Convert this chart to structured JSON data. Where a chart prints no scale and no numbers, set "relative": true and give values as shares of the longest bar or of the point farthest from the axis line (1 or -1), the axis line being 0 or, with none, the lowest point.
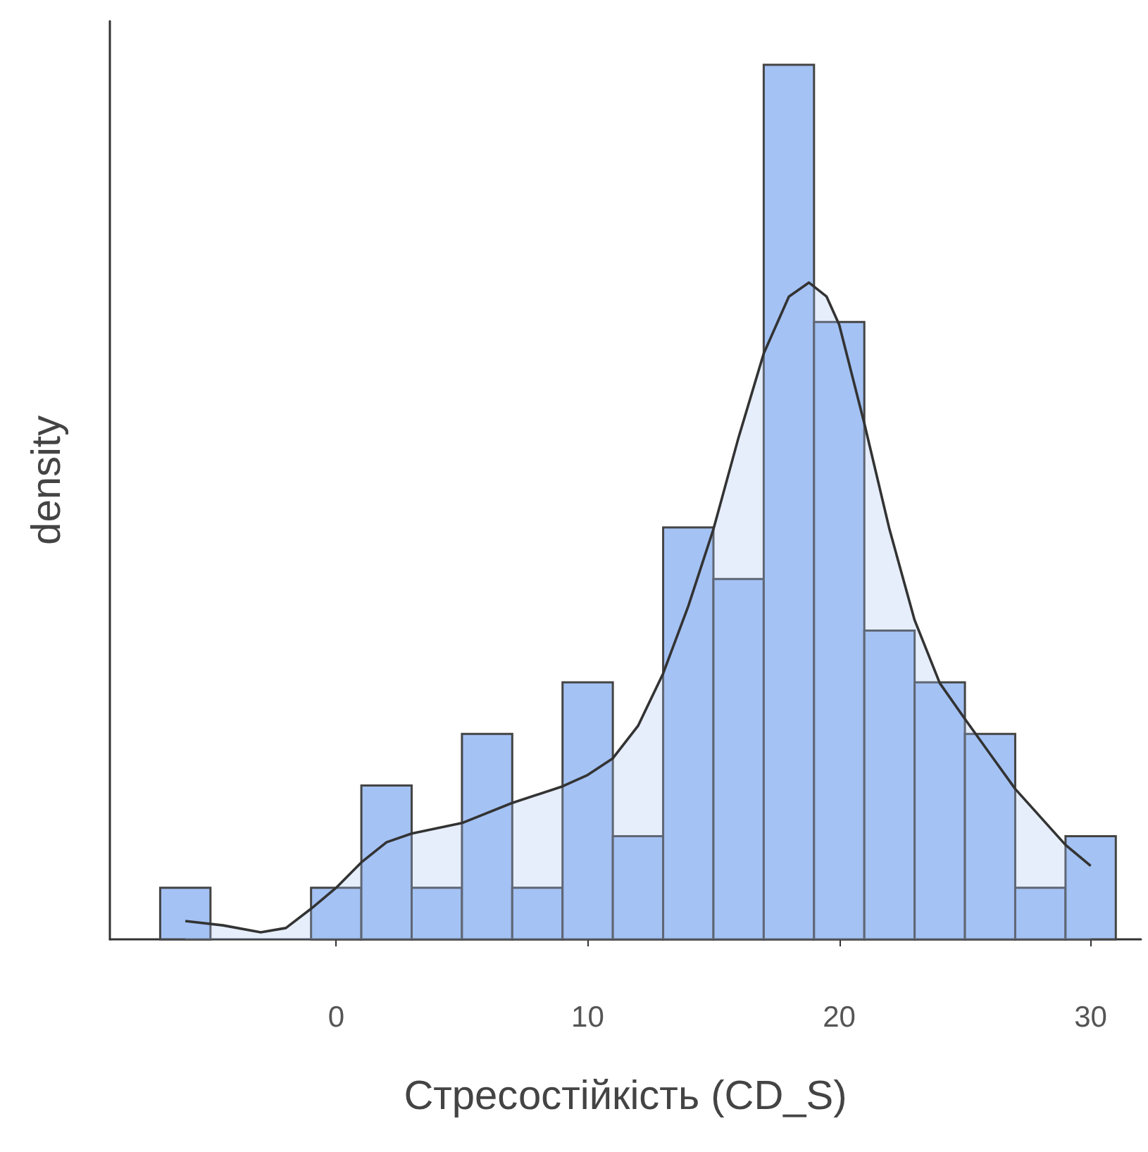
{
  "chart_data": {
    "type": "histogram",
    "relative": true,
    "xlabel": "Стресостійкість (CD_S)",
    "ylabel": "density",
    "xlim": [
      -9,
      32
    ],
    "xticks": [
      0,
      10,
      20,
      30
    ],
    "series": [
      {
        "type": "histogram",
        "color": "#a4c2f4",
        "bins": [
          -7,
          -5,
          -3,
          -1,
          1,
          3,
          5,
          7,
          9,
          11,
          13,
          15,
          17,
          19,
          21,
          23,
          25,
          27,
          29,
          31
        ],
        "values": [
          0.059,
          0,
          0,
          0.059,
          0.176,
          0.059,
          0.235,
          0.059,
          0.294,
          0.118,
          0.471,
          0.412,
          1,
          0.706,
          0.353,
          0.294,
          0.235,
          0.059,
          0.118
        ]
      },
      {
        "type": "area",
        "color": "#333333",
        "x": [
          -6,
          -4.5,
          -3,
          -2,
          -1,
          0,
          1,
          2,
          3,
          5,
          7,
          9,
          10,
          11,
          12,
          13,
          14,
          15,
          16,
          17,
          18,
          18.8,
          19.5,
          20,
          21,
          22,
          23,
          24,
          25,
          26,
          27,
          28,
          29,
          30
        ],
        "values": [
          0.021,
          0.016,
          0.008,
          0.013,
          0.035,
          0.059,
          0.088,
          0.111,
          0.121,
          0.133,
          0.156,
          0.175,
          0.188,
          0.207,
          0.244,
          0.304,
          0.381,
          0.469,
          0.574,
          0.67,
          0.735,
          0.751,
          0.735,
          0.703,
          0.59,
          0.469,
          0.365,
          0.293,
          0.252,
          0.212,
          0.172,
          0.14,
          0.108,
          0.084
        ]
      }
    ]
  }
}
